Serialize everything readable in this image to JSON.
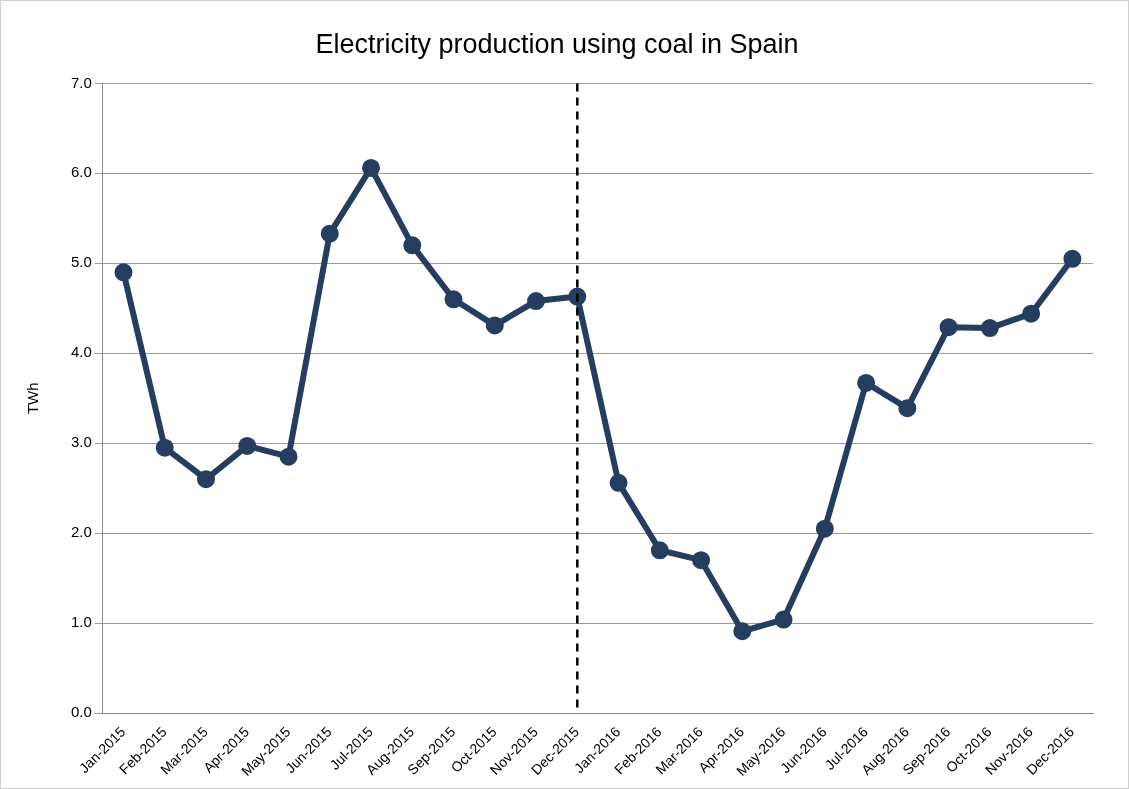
{
  "chart_data": {
    "type": "line",
    "title": "Electricity production using coal in Spain",
    "ylabel": "TWh",
    "categories": [
      "Jan-2015",
      "Feb-2015",
      "Mar-2015",
      "Apr-2015",
      "May-2015",
      "Jun-2015",
      "Jul-2015",
      "Aug-2015",
      "Sep-2015",
      "Oct-2015",
      "Nov-2015",
      "Dec-2015",
      "Jan-2016",
      "Feb-2016",
      "Mar-2016",
      "Apr-2016",
      "May-2016",
      "Jun-2016",
      "Jul-2016",
      "Aug-2016",
      "Sep-2016",
      "Oct-2016",
      "Nov-2016",
      "Dec-2016"
    ],
    "series": [
      {
        "color": "#253d5e",
        "values": [
          4.9,
          2.95,
          2.6,
          2.97,
          2.85,
          5.33,
          6.06,
          5.2,
          4.6,
          4.31,
          4.58,
          4.63,
          2.56,
          1.81,
          1.7,
          0.91,
          1.04,
          2.05,
          3.67,
          3.39,
          4.29,
          4.28,
          4.44,
          5.05
        ]
      }
    ],
    "ylim": [
      0,
      7
    ],
    "yticks": [
      {
        "value": 0,
        "label": "0.0"
      },
      {
        "value": 1,
        "label": "1.0"
      },
      {
        "value": 2,
        "label": "2.0"
      },
      {
        "value": 3,
        "label": "3.0"
      },
      {
        "value": 4,
        "label": "4.0"
      },
      {
        "value": 5,
        "label": "5.0"
      },
      {
        "value": 6,
        "label": "6.0"
      },
      {
        "value": 7,
        "label": "7.0"
      }
    ],
    "ref_lines": [
      {
        "axis": "x",
        "value": "Dec-2015",
        "color": "#000000",
        "line_style": "dashed"
      }
    ],
    "grid": "y",
    "legend": false,
    "marker": "circle",
    "line_style": "solid"
  }
}
